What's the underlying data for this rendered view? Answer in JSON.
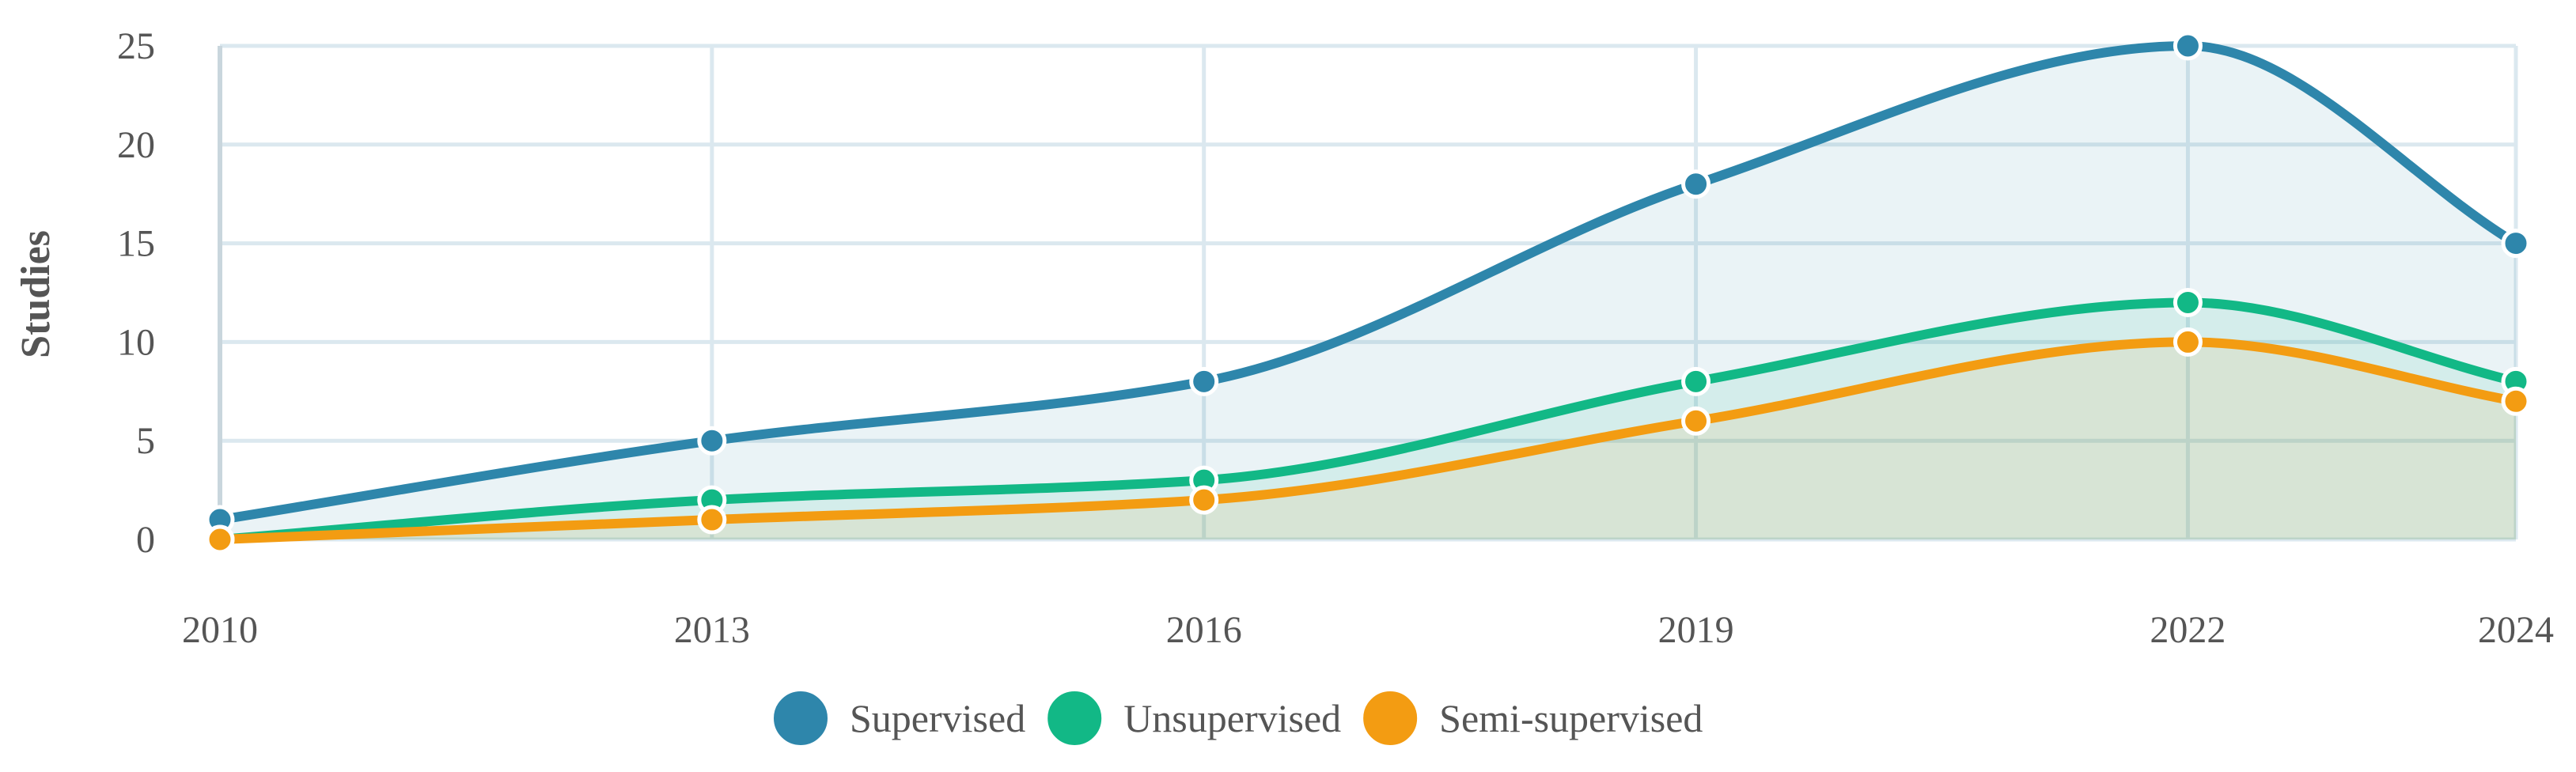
{
  "chart_data": {
    "type": "area",
    "title": "",
    "xlabel": "",
    "ylabel": "Studies",
    "x": [
      2010,
      2013,
      2016,
      2019,
      2022,
      2024
    ],
    "x_tick_labels": [
      "2010",
      "2013",
      "2016",
      "2019",
      "2022",
      "2024"
    ],
    "y_ticks": [
      0,
      5,
      10,
      15,
      20,
      25
    ],
    "ylim": [
      0,
      25
    ],
    "grid": true,
    "legend_position": "bottom-center",
    "series": [
      {
        "name": "Supervised",
        "values": [
          1,
          5,
          8,
          18,
          25,
          15
        ],
        "color": "#2e86ab"
      },
      {
        "name": "Unsupervised",
        "values": [
          0,
          2,
          3,
          8,
          12,
          8
        ],
        "color": "#12b886"
      },
      {
        "name": "Semi-supervised",
        "values": [
          0,
          1,
          2,
          6,
          10,
          7
        ],
        "color": "#f39c12"
      }
    ]
  }
}
